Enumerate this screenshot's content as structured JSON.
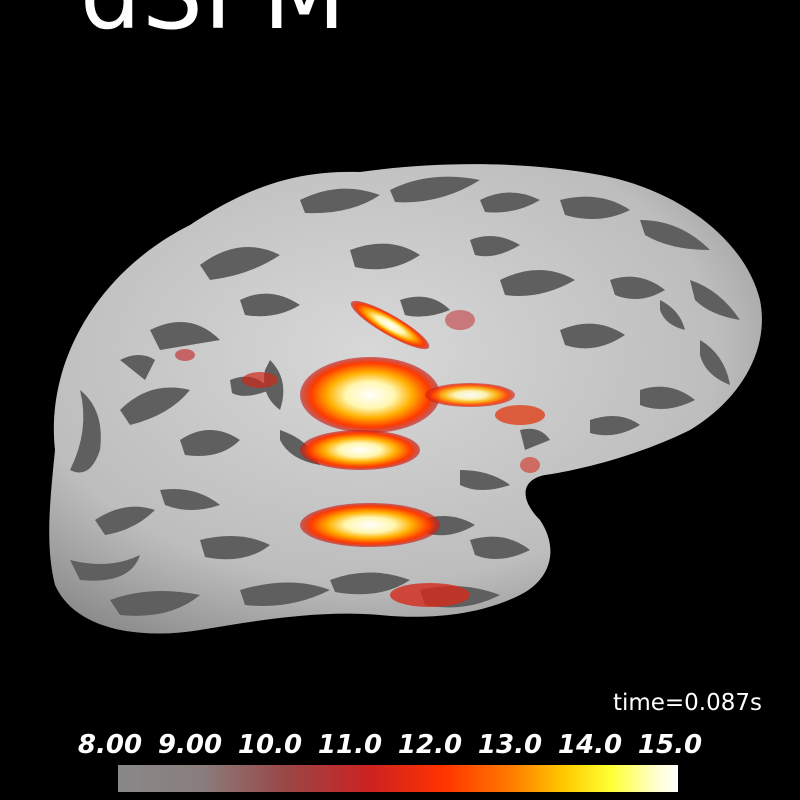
{
  "title": "dSPM",
  "time_label": "time=0.087s",
  "colorbar": {
    "ticks": [
      "8.00",
      "9.00",
      "10.0",
      "11.0",
      "12.0",
      "13.0",
      "14.0",
      "15.0"
    ],
    "min": 8.0,
    "max": 15.0
  },
  "colors": {
    "background": "#000000",
    "cortex_light": "#c8c8c8",
    "cortex_dark": "#5e5e5e",
    "activation_low": "#cc2222",
    "activation_mid": "#ff7a00",
    "activation_high": "#ffffcc"
  }
}
